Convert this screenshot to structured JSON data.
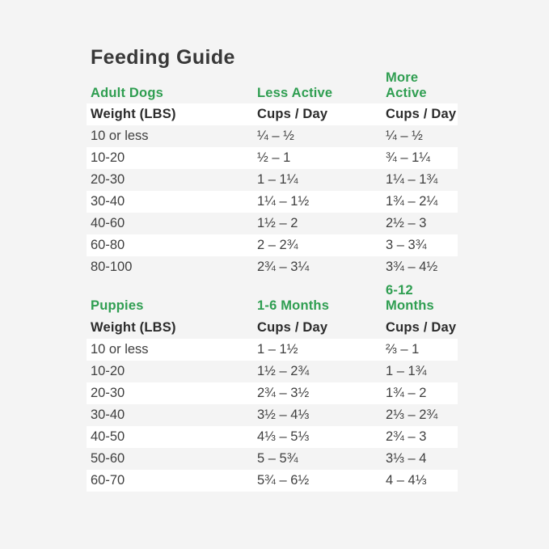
{
  "page": {
    "title": "Feeding Guide"
  },
  "colors": {
    "background": "#f4f4f4",
    "row_stripe": "#ffffff",
    "accent_green": "#2f9e51",
    "heading_text": "#383838",
    "body_text": "#3f3f3f"
  },
  "tables": [
    {
      "section": "Adult Dogs",
      "col2_header": "Less Active",
      "col3_header": "More Active",
      "subheader": {
        "col1": "Weight (LBS)",
        "col2": "Cups / Day",
        "col3": "Cups / Day"
      },
      "rows": [
        {
          "weight": "10 or less",
          "less_active": "¼ – ½",
          "more_active": "¼ – ½"
        },
        {
          "weight": "10-20",
          "less_active": "½ – 1",
          "more_active": "¾ – 1¼"
        },
        {
          "weight": "20-30",
          "less_active": "1 – 1¼",
          "more_active": "1¼ – 1¾"
        },
        {
          "weight": "30-40",
          "less_active": "1¼ – 1½",
          "more_active": "1¾ – 2¼"
        },
        {
          "weight": "40-60",
          "less_active": "1½ – 2",
          "more_active": "2½ – 3"
        },
        {
          "weight": "60-80",
          "less_active": "2 – 2¾",
          "more_active": "3 – 3¾"
        },
        {
          "weight": "80-100",
          "less_active": "2¾ – 3¼",
          "more_active": "3¾ – 4½"
        }
      ]
    },
    {
      "section": "Puppies",
      "col2_header": "1-6 Months",
      "col3_header": "6-12 Months",
      "subheader": {
        "col1": "Weight (LBS)",
        "col2": "Cups / Day",
        "col3": "Cups / Day"
      },
      "rows": [
        {
          "weight": "10 or less",
          "months_1_6": "1 – 1½",
          "months_6_12": "⅔ – 1"
        },
        {
          "weight": "10-20",
          "months_1_6": "1½ – 2¾",
          "months_6_12": "1 – 1¾"
        },
        {
          "weight": "20-30",
          "months_1_6": "2¾ – 3½",
          "months_6_12": "1¾ – 2"
        },
        {
          "weight": "30-40",
          "months_1_6": "3½ – 4⅓",
          "months_6_12": "2⅓ – 2¾"
        },
        {
          "weight": "40-50",
          "months_1_6": "4⅓ – 5⅓",
          "months_6_12": "2¾ – 3"
        },
        {
          "weight": "50-60",
          "months_1_6": "5 – 5¾",
          "months_6_12": "3⅓ – 4"
        },
        {
          "weight": "60-70",
          "months_1_6": "5¾ – 6½",
          "months_6_12": "4 – 4⅓"
        }
      ]
    }
  ]
}
